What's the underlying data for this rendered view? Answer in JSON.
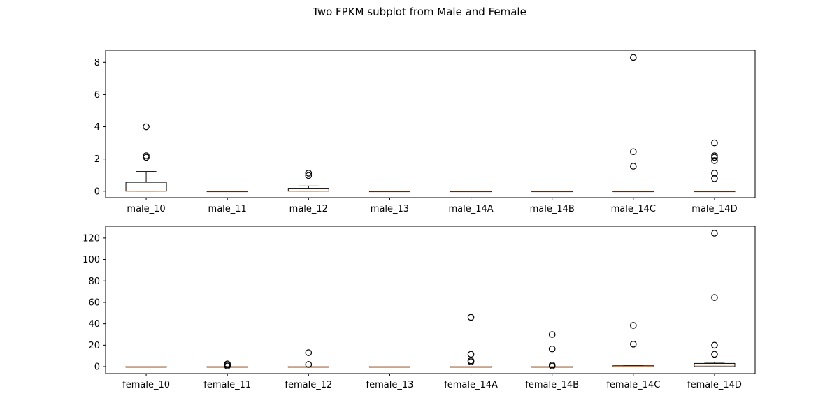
{
  "figure": {
    "title": "Two FPKM subplot from Male and Female"
  },
  "colors": {
    "median": "#e07b39",
    "box": "#000000",
    "axes": "#000000"
  },
  "chart_data": [
    {
      "type": "box",
      "title": "",
      "xlabel": "",
      "ylabel": "",
      "ylim": [
        -0.4,
        8.75
      ],
      "yticks": [
        0,
        2,
        4,
        6,
        8
      ],
      "grid": false,
      "categories": [
        "male_10",
        "male_11",
        "male_12",
        "male_13",
        "male_14A",
        "male_14B",
        "male_14C",
        "male_14D"
      ],
      "boxes": [
        {
          "q1": 0,
          "median": 0,
          "q3": 0.55,
          "whisker_low": 0,
          "whisker_high": 1.22,
          "outliers": [
            2.1,
            2.2,
            4.0
          ]
        },
        {
          "q1": 0,
          "median": 0,
          "q3": 0,
          "whisker_low": 0,
          "whisker_high": 0,
          "outliers": []
        },
        {
          "q1": 0,
          "median": 0,
          "q3": 0.18,
          "whisker_low": 0,
          "whisker_high": 0.32,
          "outliers": [
            0.97,
            1.12
          ]
        },
        {
          "q1": 0,
          "median": 0,
          "q3": 0,
          "whisker_low": 0,
          "whisker_high": 0,
          "outliers": []
        },
        {
          "q1": 0,
          "median": 0,
          "q3": 0,
          "whisker_low": 0,
          "whisker_high": 0,
          "outliers": []
        },
        {
          "q1": 0,
          "median": 0,
          "q3": 0,
          "whisker_low": 0,
          "whisker_high": 0,
          "outliers": []
        },
        {
          "q1": 0,
          "median": 0,
          "q3": 0,
          "whisker_low": 0,
          "whisker_high": 0,
          "outliers": [
            1.55,
            2.45,
            8.3
          ]
        },
        {
          "q1": 0,
          "median": 0,
          "q3": 0,
          "whisker_low": 0,
          "whisker_high": 0,
          "outliers": [
            0.78,
            1.12,
            1.9,
            2.1,
            2.2,
            3.0
          ]
        }
      ]
    },
    {
      "type": "box",
      "title": "",
      "xlabel": "",
      "ylabel": "",
      "ylim": [
        -6.5,
        131
      ],
      "yticks": [
        0,
        20,
        40,
        60,
        80,
        100,
        120
      ],
      "grid": false,
      "categories": [
        "female_10",
        "female_11",
        "female_12",
        "female_13",
        "female_14A",
        "female_14B",
        "female_14C",
        "female_14D"
      ],
      "boxes": [
        {
          "q1": 0,
          "median": 0,
          "q3": 0,
          "whisker_low": 0,
          "whisker_high": 0,
          "outliers": []
        },
        {
          "q1": 0,
          "median": 0,
          "q3": 0,
          "whisker_low": 0,
          "whisker_high": 0,
          "outliers": [
            0.5,
            1.5,
            2.5
          ]
        },
        {
          "q1": 0,
          "median": 0,
          "q3": 0,
          "whisker_low": 0,
          "whisker_high": 0,
          "outliers": [
            2.0,
            13.0
          ]
        },
        {
          "q1": 0,
          "median": 0,
          "q3": 0,
          "whisker_low": 0,
          "whisker_high": 0,
          "outliers": []
        },
        {
          "q1": 0,
          "median": 0,
          "q3": 0,
          "whisker_low": 0,
          "whisker_high": 0,
          "outliers": [
            4.5,
            5.5,
            11.5,
            46.0
          ]
        },
        {
          "q1": 0,
          "median": 0,
          "q3": 0,
          "whisker_low": 0,
          "whisker_high": 0,
          "outliers": [
            0.5,
            1.5,
            16.5,
            30.0
          ]
        },
        {
          "q1": 0,
          "median": 0.4,
          "q3": 0.9,
          "whisker_low": 0,
          "whisker_high": 1.2,
          "outliers": [
            21.0,
            38.5
          ]
        },
        {
          "q1": 0,
          "median": 1.5,
          "q3": 3.0,
          "whisker_low": 0,
          "whisker_high": 4.0,
          "outliers": [
            11.5,
            20.0,
            64.5,
            124.5
          ]
        }
      ]
    }
  ]
}
